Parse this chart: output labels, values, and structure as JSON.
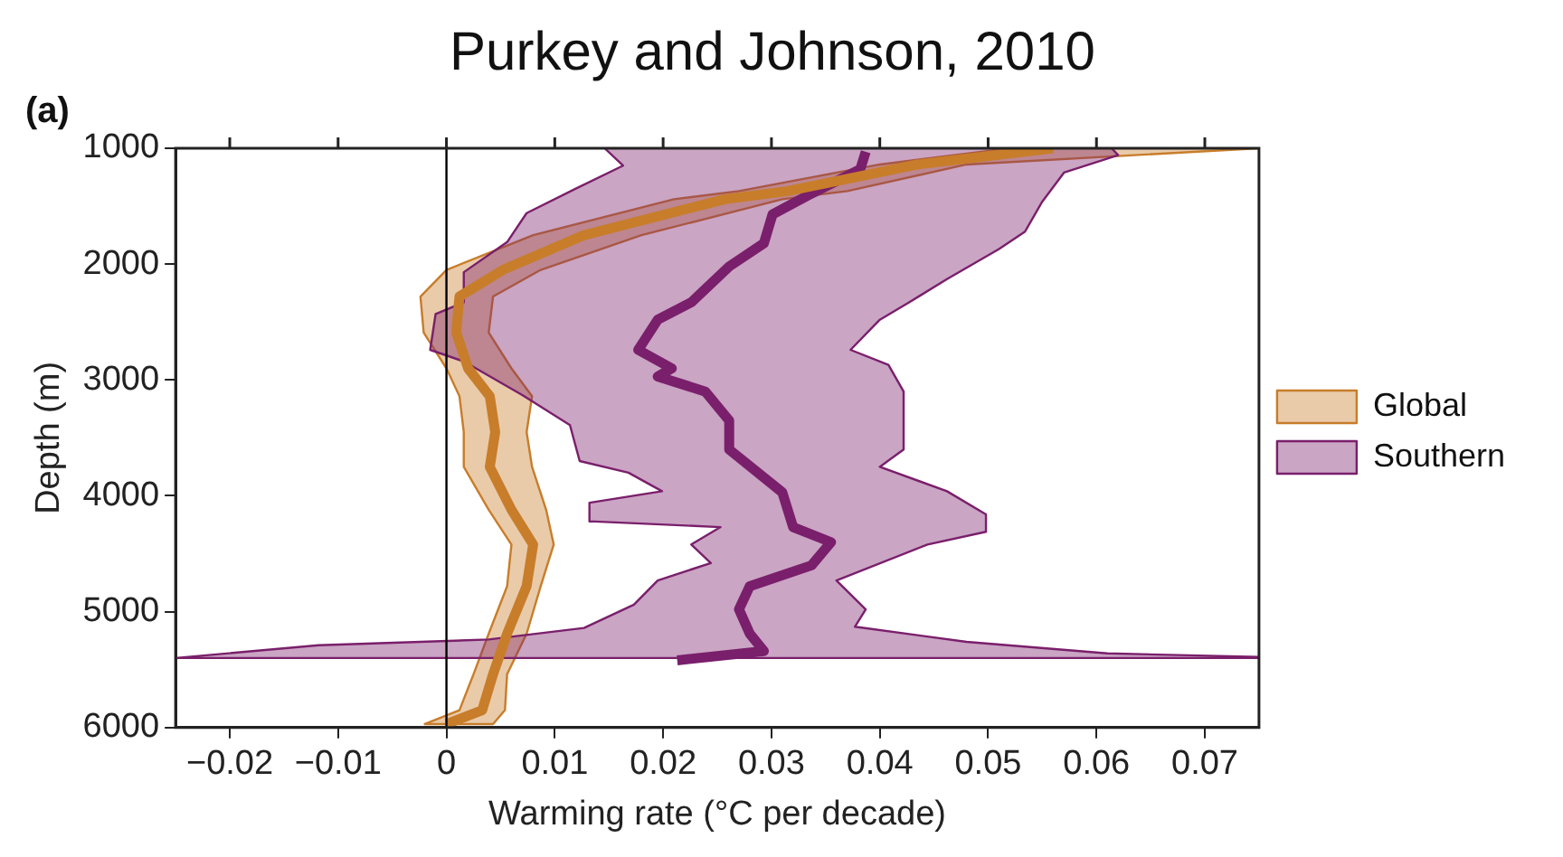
{
  "chart_data": {
    "type": "line",
    "title": "Purkey and Johnson, 2010",
    "xlabel": "Warming rate (°C per decade)",
    "ylabel": "Depth (m)",
    "annotations": [
      "(a)"
    ],
    "xlim": [
      -0.025,
      0.075
    ],
    "ylim": [
      6000,
      1000
    ],
    "xticks": [
      {
        "value": -0.02,
        "label": "−0.02"
      },
      {
        "value": -0.01,
        "label": "−0.01"
      },
      0,
      0.01,
      0.02,
      0.03,
      0.04,
      0.05,
      0.06,
      0.07
    ],
    "yticks": [
      1000,
      2000,
      3000,
      4000,
      5000,
      6000
    ],
    "grid": false,
    "legend": "right",
    "marker": "none",
    "line_style": "solid",
    "ref_lines": [
      {
        "axis": "x",
        "value": 0,
        "color": "#000000"
      }
    ],
    "series": [
      {
        "name": "Southern",
        "type": "area",
        "color": "#7a1f6b",
        "x": [
          0.0146,
          0.0163,
          0.0119,
          0.0074,
          0.0056,
          0.0016,
          0.0016,
          -0.001,
          -0.0015,
          0.0016,
          0.007,
          0.0114,
          0.0123,
          0.0168,
          0.0199,
          0.0132,
          0.0132,
          0.0253,
          0.0226,
          0.0244,
          0.0195,
          0.0173,
          0.0127,
          0.0039,
          -0.0118,
          -0.025,
          0.075,
          0.075,
          0.061,
          0.048,
          0.0377,
          0.0387,
          0.036,
          0.0444,
          0.0498,
          0.0498,
          0.0462,
          0.04,
          0.0422,
          0.0422,
          0.0408,
          0.0373,
          0.04,
          0.0427,
          0.0462,
          0.051,
          0.0534,
          0.055,
          0.057,
          0.062,
          0.0614
        ],
        "values": [
          1000,
          1150,
          1350,
          1560,
          1810,
          2070,
          2330,
          2430,
          2740,
          2840,
          3130,
          3390,
          3700,
          3800,
          3960,
          4060,
          4220,
          4270,
          4420,
          4580,
          4730,
          4940,
          5140,
          5240,
          5290,
          5400,
          5400,
          5390,
          5360,
          5260,
          5130,
          4980,
          4730,
          4420,
          4310,
          4160,
          3960,
          3750,
          3600,
          3100,
          2870,
          2740,
          2480,
          2330,
          2130,
          1870,
          1720,
          1460,
          1210,
          1060,
          1000
        ]
      },
      {
        "name": "Global",
        "type": "area",
        "color": "#c87d2a",
        "x": [
          0.052,
          0.04,
          0.027,
          0.021,
          0.008,
          0.0,
          -0.0024,
          -0.0021,
          0.0,
          0.0012,
          0.0016,
          0.0016,
          0.0039,
          0.006,
          0.0056,
          0.0039,
          0.0025,
          0.0012,
          -0.002,
          0.0043,
          0.0054,
          0.0056,
          0.0074,
          0.0087,
          0.0099,
          0.0092,
          0.0079,
          0.0074,
          0.0079,
          0.006,
          0.0039,
          0.0043,
          0.0087,
          0.018,
          0.031,
          0.037,
          0.048,
          0.075
        ],
        "values": [
          1000,
          1140,
          1370,
          1440,
          1750,
          2050,
          2280,
          2590,
          2900,
          3140,
          3450,
          3750,
          4120,
          4420,
          4780,
          5190,
          5540,
          5850,
          5970,
          5970,
          5850,
          5540,
          5190,
          4780,
          4420,
          4120,
          3750,
          3450,
          3140,
          2900,
          2590,
          2280,
          2050,
          1750,
          1440,
          1370,
          1140,
          1000
        ]
      },
      {
        "color": "#c87d2a",
        "x": [
          0.056,
          0.0435,
          0.0315,
          0.0257,
          0.0127,
          0.0052,
          0.0012,
          0.0009,
          0.002,
          0.004,
          0.0045,
          0.004,
          0.006,
          0.008,
          0.0074,
          0.0056,
          0.0043,
          0.0033,
          0.0
        ],
        "values": [
          1000,
          1140,
          1370,
          1440,
          1750,
          2050,
          2280,
          2590,
          2900,
          3140,
          3450,
          3750,
          4120,
          4420,
          4780,
          5190,
          5540,
          5850,
          5970
        ]
      },
      {
        "color": "#7a1f6b",
        "x": [
          0.0387,
          0.0382,
          0.0333,
          0.0301,
          0.0293,
          0.0261,
          0.0226,
          0.0195,
          0.0177,
          0.0208,
          0.0195,
          0.0239,
          0.0261,
          0.0261,
          0.031,
          0.032,
          0.0355,
          0.0337,
          0.028,
          0.027,
          0.028,
          0.0293,
          0.0213
        ],
        "values": [
          1030,
          1180,
          1410,
          1570,
          1820,
          2020,
          2330,
          2480,
          2740,
          2900,
          2970,
          3100,
          3350,
          3600,
          3970,
          4270,
          4400,
          4600,
          4780,
          4980,
          5190,
          5340,
          5420
        ]
      }
    ]
  }
}
